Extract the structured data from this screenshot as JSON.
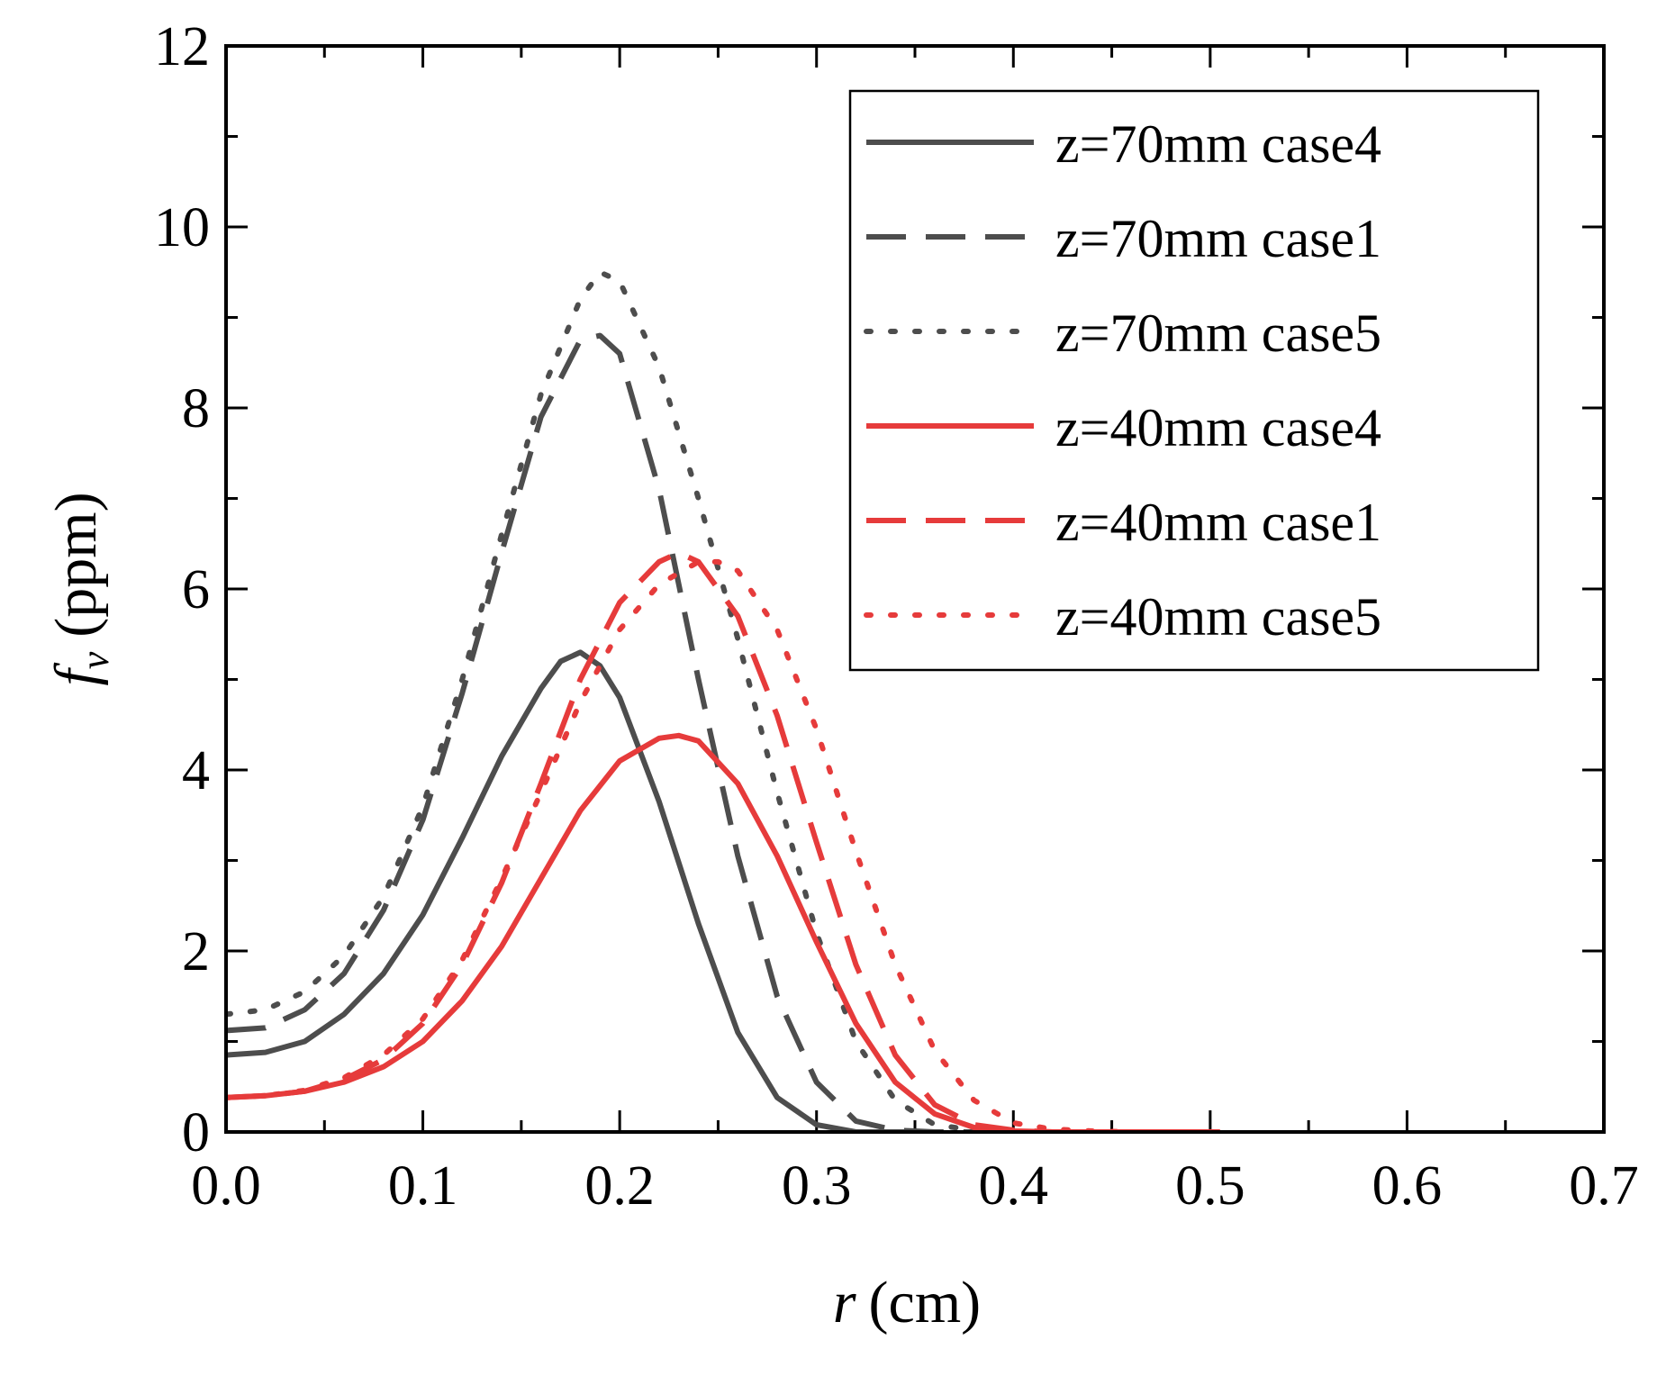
{
  "chart_data": {
    "type": "line",
    "title": "",
    "xlabel": {
      "symbol": "r",
      "unit": "(cm)"
    },
    "ylabel": {
      "symbol": "f",
      "subscript": "v",
      "unit": "(ppm)"
    },
    "xlim": [
      0.0,
      0.7
    ],
    "ylim": [
      0,
      12
    ],
    "x_ticks": [
      0.0,
      0.1,
      0.2,
      0.3,
      0.4,
      0.5,
      0.6,
      0.7
    ],
    "x_tick_labels": [
      "0.0",
      "0.1",
      "0.2",
      "0.3",
      "0.4",
      "0.5",
      "0.6",
      "0.7"
    ],
    "y_ticks": [
      0,
      2,
      4,
      6,
      8,
      10,
      12
    ],
    "y_tick_labels": [
      "0",
      "2",
      "4",
      "6",
      "8",
      "10",
      "12"
    ],
    "grid": false,
    "legend_position": "top-right",
    "series": [
      {
        "name": "z=70mm case4",
        "color": "#4d4d4d",
        "style": "solid",
        "x": [
          0.0,
          0.02,
          0.04,
          0.06,
          0.08,
          0.1,
          0.12,
          0.14,
          0.16,
          0.17,
          0.18,
          0.19,
          0.2,
          0.22,
          0.24,
          0.26,
          0.28,
          0.3,
          0.32,
          0.34,
          0.36
        ],
        "y": [
          0.85,
          0.88,
          1.0,
          1.3,
          1.75,
          2.4,
          3.25,
          4.15,
          4.9,
          5.2,
          5.3,
          5.15,
          4.8,
          3.65,
          2.3,
          1.1,
          0.38,
          0.08,
          0.0,
          0.0,
          0.0
        ]
      },
      {
        "name": "z=70mm case1",
        "color": "#4d4d4d",
        "style": "dashed",
        "x": [
          0.0,
          0.02,
          0.04,
          0.06,
          0.08,
          0.1,
          0.12,
          0.14,
          0.16,
          0.18,
          0.19,
          0.2,
          0.22,
          0.24,
          0.26,
          0.28,
          0.3,
          0.32,
          0.34,
          0.36,
          0.38
        ],
        "y": [
          1.12,
          1.15,
          1.35,
          1.75,
          2.45,
          3.45,
          4.85,
          6.4,
          7.9,
          8.75,
          8.8,
          8.6,
          7.1,
          5.0,
          3.05,
          1.5,
          0.55,
          0.12,
          0.02,
          0.0,
          0.0
        ]
      },
      {
        "name": "z=70mm case5",
        "color": "#4d4d4d",
        "style": "dotted",
        "x": [
          0.0,
          0.02,
          0.04,
          0.06,
          0.08,
          0.1,
          0.12,
          0.14,
          0.16,
          0.18,
          0.19,
          0.2,
          0.22,
          0.24,
          0.26,
          0.28,
          0.3,
          0.32,
          0.34,
          0.36,
          0.38,
          0.4
        ],
        "y": [
          1.3,
          1.35,
          1.55,
          1.95,
          2.6,
          3.6,
          5.0,
          6.6,
          8.15,
          9.2,
          9.5,
          9.4,
          8.45,
          7.0,
          5.45,
          3.75,
          2.2,
          1.0,
          0.35,
          0.08,
          0.02,
          0.0
        ]
      },
      {
        "name": "z=40mm case4",
        "color": "#e63b3b",
        "style": "solid",
        "x": [
          0.0,
          0.02,
          0.04,
          0.06,
          0.08,
          0.1,
          0.12,
          0.14,
          0.16,
          0.18,
          0.2,
          0.22,
          0.23,
          0.24,
          0.26,
          0.28,
          0.3,
          0.32,
          0.34,
          0.36,
          0.38,
          0.4,
          0.42,
          0.44,
          0.46,
          0.48,
          0.5,
          0.505
        ],
        "y": [
          0.38,
          0.4,
          0.45,
          0.55,
          0.72,
          1.0,
          1.45,
          2.05,
          2.8,
          3.55,
          4.1,
          4.35,
          4.38,
          4.32,
          3.85,
          3.05,
          2.1,
          1.2,
          0.55,
          0.2,
          0.05,
          0.01,
          0.0,
          0.0,
          0.0,
          0.0,
          0.0,
          0.0
        ]
      },
      {
        "name": "z=40mm case1",
        "color": "#e63b3b",
        "style": "dashed",
        "x": [
          0.0,
          0.02,
          0.04,
          0.06,
          0.08,
          0.1,
          0.12,
          0.14,
          0.16,
          0.18,
          0.2,
          0.22,
          0.23,
          0.24,
          0.26,
          0.28,
          0.3,
          0.32,
          0.34,
          0.36,
          0.38,
          0.4,
          0.42,
          0.44
        ],
        "y": [
          0.38,
          0.4,
          0.45,
          0.58,
          0.8,
          1.2,
          1.85,
          2.75,
          3.85,
          5.0,
          5.85,
          6.3,
          6.4,
          6.3,
          5.7,
          4.6,
          3.2,
          1.85,
          0.85,
          0.3,
          0.08,
          0.02,
          0.0,
          0.0
        ]
      },
      {
        "name": "z=40mm case5",
        "color": "#e63b3b",
        "style": "dotted",
        "x": [
          0.0,
          0.02,
          0.04,
          0.06,
          0.08,
          0.1,
          0.12,
          0.14,
          0.16,
          0.18,
          0.2,
          0.22,
          0.24,
          0.25,
          0.26,
          0.28,
          0.3,
          0.32,
          0.34,
          0.36,
          0.38,
          0.4,
          0.42,
          0.44,
          0.46
        ],
        "y": [
          0.38,
          0.4,
          0.46,
          0.6,
          0.85,
          1.25,
          1.9,
          2.8,
          3.75,
          4.75,
          5.55,
          6.05,
          6.3,
          6.3,
          6.2,
          5.55,
          4.45,
          3.1,
          1.85,
          0.9,
          0.35,
          0.1,
          0.03,
          0.01,
          0.0
        ]
      }
    ]
  }
}
